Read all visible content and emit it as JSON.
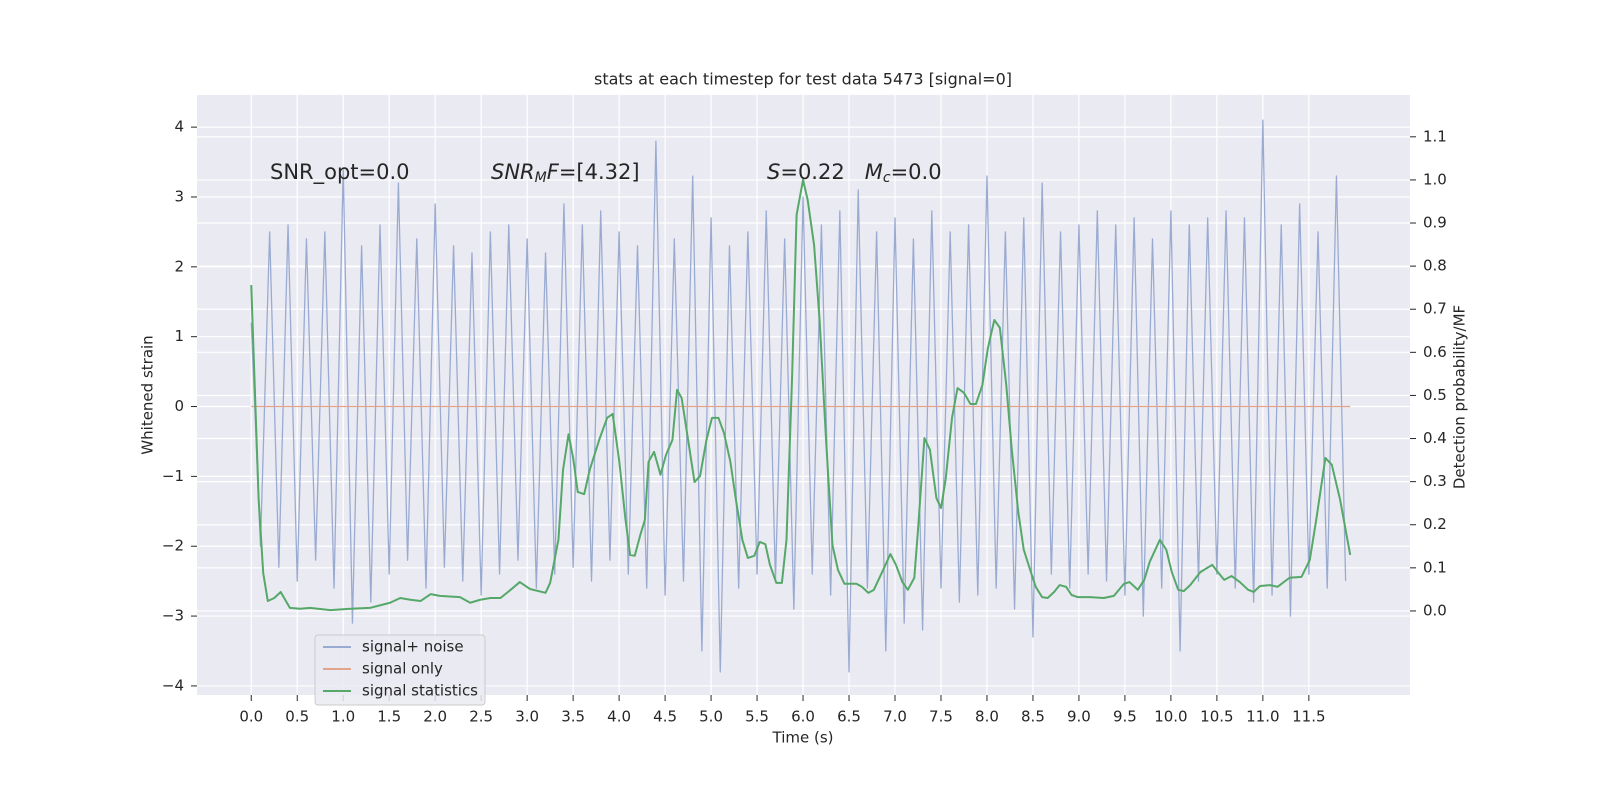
{
  "chart_data": {
    "type": "line",
    "title": "stats at each timestep for test data 5473 [signal=0]",
    "xlabel": "Time (s)",
    "ylabel": "Whitened strain",
    "y2label": "Detection probability/MF",
    "annotations": [
      [
        {
          "text": "SNR_opt=0.0",
          "style": "normal"
        }
      ],
      [
        {
          "text": "SNR",
          "style": "italic"
        },
        {
          "text": "M",
          "style": "sub"
        },
        {
          "text": "F",
          "style": "italic"
        },
        {
          "text": "=[4.32]",
          "style": "normal"
        }
      ],
      [
        {
          "text": "S",
          "style": "italic"
        },
        {
          "text": "=0.22   ",
          "style": "normal"
        },
        {
          "text": "M",
          "style": "italic"
        },
        {
          "text": "c",
          "style": "sub"
        },
        {
          "text": "=0.0",
          "style": "normal"
        }
      ]
    ],
    "xlim": [
      -0.59,
      12.6
    ],
    "ylim": [
      -4.13,
      4.46
    ],
    "y2lim": [
      -0.195,
      1.197
    ],
    "xticks": [
      {
        "value": 0,
        "label": "0.0"
      },
      {
        "value": 0.5,
        "label": "0.5"
      },
      {
        "value": 1,
        "label": "1.0"
      },
      {
        "value": 1.5,
        "label": "1.5"
      },
      {
        "value": 2,
        "label": "2.0"
      },
      {
        "value": 2.5,
        "label": "2.5"
      },
      {
        "value": 3,
        "label": "3.0"
      },
      {
        "value": 3.5,
        "label": "3.5"
      },
      {
        "value": 4,
        "label": "4.0"
      },
      {
        "value": 4.5,
        "label": "4.5"
      },
      {
        "value": 5,
        "label": "5.0"
      },
      {
        "value": 5.5,
        "label": "5.5"
      },
      {
        "value": 6,
        "label": "6.0"
      },
      {
        "value": 6.5,
        "label": "6.5"
      },
      {
        "value": 7,
        "label": "7.0"
      },
      {
        "value": 7.5,
        "label": "7.5"
      },
      {
        "value": 8,
        "label": "8.0"
      },
      {
        "value": 8.5,
        "label": "8.5"
      },
      {
        "value": 9,
        "label": "9.0"
      },
      {
        "value": 9.5,
        "label": "9.5"
      },
      {
        "value": 10,
        "label": "10.0"
      },
      {
        "value": 10.5,
        "label": "10.5"
      },
      {
        "value": 11,
        "label": "11.0"
      },
      {
        "value": 11.5,
        "label": "11.5"
      }
    ],
    "yticks": [
      {
        "value": -4,
        "label": "−4"
      },
      {
        "value": -3,
        "label": "−3"
      },
      {
        "value": -2,
        "label": "−2"
      },
      {
        "value": -1,
        "label": "−1"
      },
      0,
      1,
      2,
      3,
      4
    ],
    "y2ticks": [
      {
        "value": 0,
        "label": "0.0"
      },
      {
        "value": 0.1,
        "label": "0.1"
      },
      {
        "value": 0.2,
        "label": "0.2"
      },
      {
        "value": 0.3,
        "label": "0.3"
      },
      {
        "value": 0.4,
        "label": "0.4"
      },
      {
        "value": 0.5,
        "label": "0.5"
      },
      {
        "value": 0.6,
        "label": "0.6"
      },
      {
        "value": 0.7,
        "label": "0.7"
      },
      {
        "value": 0.8,
        "label": "0.8"
      },
      {
        "value": 0.9,
        "label": "0.9"
      },
      {
        "value": 1,
        "label": "1.0"
      },
      {
        "value": 1.1,
        "label": "1.1"
      }
    ],
    "grid": true,
    "legend": "lower left",
    "series": [
      {
        "name": "signal+ noise",
        "color": "#9aabd2",
        "axis": "y",
        "x": [
          0,
          0.1,
          0.2,
          0.3,
          0.4,
          0.5,
          0.6,
          0.7,
          0.8,
          0.9,
          1,
          1.1,
          1.2,
          1.3,
          1.4,
          1.5,
          1.6,
          1.7,
          1.8,
          1.9,
          2,
          2.1,
          2.2,
          2.3,
          2.4,
          2.5,
          2.6,
          2.7,
          2.8,
          2.9,
          3,
          3.1,
          3.2,
          3.3,
          3.4,
          3.5,
          3.6,
          3.7,
          3.8,
          3.9,
          4,
          4.1,
          4.2,
          4.3,
          4.4,
          4.5,
          4.6,
          4.7,
          4.8,
          4.9,
          5,
          5.1,
          5.2,
          5.3,
          5.4,
          5.5,
          5.6,
          5.7,
          5.8,
          5.9,
          6,
          6.1,
          6.2,
          6.3,
          6.4,
          6.5,
          6.6,
          6.7,
          6.8,
          6.9,
          7,
          7.1,
          7.2,
          7.3,
          7.4,
          7.5,
          7.6,
          7.7,
          7.8,
          7.9,
          8,
          8.1,
          8.2,
          8.3,
          8.4,
          8.5,
          8.6,
          8.7,
          8.8,
          8.9,
          9,
          9.1,
          9.2,
          9.3,
          9.4,
          9.5,
          9.6,
          9.7,
          9.8,
          9.9,
          10,
          10.1,
          10.2,
          10.3,
          10.4,
          10.5,
          10.6,
          10.7,
          10.8,
          10.9,
          11,
          11.1,
          11.2,
          11.3,
          11.4,
          11.5,
          11.6,
          11.7,
          11.8,
          11.9
        ],
        "values": [
          1.2,
          -2.0,
          2.5,
          -2.3,
          2.6,
          -2.5,
          2.4,
          -2.2,
          2.5,
          -2.6,
          3.4,
          -3.1,
          2.3,
          -2.8,
          2.6,
          -2.4,
          3.2,
          -2.2,
          2.4,
          -2.6,
          2.9,
          -2.3,
          2.3,
          -2.5,
          2.2,
          -2.7,
          2.5,
          -2.4,
          2.6,
          -2.2,
          2.4,
          -2.6,
          2.2,
          -2.4,
          2.9,
          -2.3,
          2.6,
          -2.5,
          2.8,
          -2.2,
          2.5,
          -2.4,
          2.3,
          -2.6,
          3.8,
          -2.7,
          2.4,
          -2.5,
          3.3,
          -3.5,
          2.7,
          -3.8,
          2.3,
          -2.6,
          2.5,
          -2.4,
          2.8,
          -2.5,
          2.4,
          -2.9,
          3.0,
          -2.4,
          2.6,
          -2.7,
          2.8,
          -3.8,
          3.1,
          -2.6,
          2.5,
          -3.5,
          2.7,
          -3.1,
          2.4,
          -3.2,
          2.8,
          -2.6,
          2.5,
          -2.8,
          2.6,
          -2.7,
          3.3,
          -2.6,
          2.5,
          -2.9,
          2.7,
          -3.3,
          3.2,
          -2.4,
          2.5,
          -2.6,
          2.6,
          -2.4,
          2.8,
          -2.5,
          2.6,
          -2.7,
          2.7,
          -3.0,
          2.4,
          -2.6,
          2.8,
          -3.5,
          2.6,
          -2.5,
          2.7,
          -2.4,
          2.8,
          -2.6,
          2.7,
          -2.8,
          4.1,
          -2.7,
          2.6,
          -3.0,
          2.9,
          -2.4,
          2.5,
          -2.6,
          3.3,
          -2.5
        ]
      },
      {
        "name": "signal only",
        "color": "#e2a48a",
        "axis": "y",
        "x": [
          0,
          11.95
        ],
        "values": [
          0,
          0
        ]
      },
      {
        "name": "signal statistics",
        "color": "#55a868",
        "axis": "y2",
        "x": [
          0,
          0.08,
          0.13,
          0.18,
          0.25,
          0.32,
          0.42,
          0.53,
          0.64,
          0.86,
          1.08,
          1.29,
          1.51,
          1.62,
          1.73,
          1.84,
          1.95,
          2.05,
          2.27,
          2.38,
          2.49,
          2.6,
          2.71,
          2.82,
          2.92,
          3.03,
          3.2,
          3.25,
          3.34,
          3.39,
          3.45,
          3.5,
          3.55,
          3.62,
          3.68,
          3.75,
          3.79,
          3.87,
          3.93,
          4,
          4.07,
          4.12,
          4.17,
          4.23,
          4.28,
          4.32,
          4.38,
          4.45,
          4.51,
          4.58,
          4.63,
          4.68,
          4.75,
          4.82,
          4.88,
          4.95,
          5.01,
          5.08,
          5.14,
          5.21,
          5.27,
          5.34,
          5.4,
          5.47,
          5.53,
          5.59,
          5.64,
          5.71,
          5.77,
          5.82,
          5.88,
          5.93,
          6,
          6.05,
          6.12,
          6.18,
          6.25,
          6.32,
          6.38,
          6.45,
          6.51,
          6.58,
          6.64,
          6.71,
          6.77,
          6.84,
          6.95,
          7.01,
          7.08,
          7.14,
          7.21,
          7.25,
          7.32,
          7.38,
          7.45,
          7.5,
          7.55,
          7.62,
          7.68,
          7.75,
          7.82,
          7.88,
          7.95,
          8.01,
          8.08,
          8.14,
          8.21,
          8.27,
          8.34,
          8.4,
          8.47,
          8.53,
          8.6,
          8.66,
          8.73,
          8.79,
          8.86,
          8.92,
          8.99,
          9.12,
          9.27,
          9.38,
          9.49,
          9.55,
          9.64,
          9.71,
          9.77,
          9.88,
          9.95,
          10.01,
          10.08,
          10.14,
          10.21,
          10.32,
          10.45,
          10.51,
          10.58,
          10.66,
          10.75,
          10.84,
          10.9,
          10.97,
          11.08,
          11.16,
          11.29,
          11.42,
          11.51,
          11.58,
          11.68,
          11.75,
          11.84,
          11.9,
          11.95
        ],
        "values": [
          0.756,
          0.26,
          0.088,
          0.023,
          0.03,
          0.044,
          0.007,
          0.005,
          0.007,
          0.002,
          0.005,
          0.007,
          0.019,
          0.03,
          0.026,
          0.023,
          0.039,
          0.035,
          0.032,
          0.019,
          0.026,
          0.03,
          0.03,
          0.049,
          0.067,
          0.051,
          0.042,
          0.065,
          0.165,
          0.327,
          0.41,
          0.355,
          0.276,
          0.271,
          0.327,
          0.374,
          0.401,
          0.448,
          0.457,
          0.35,
          0.211,
          0.13,
          0.128,
          0.176,
          0.211,
          0.346,
          0.369,
          0.316,
          0.362,
          0.397,
          0.513,
          0.494,
          0.397,
          0.299,
          0.313,
          0.397,
          0.448,
          0.448,
          0.413,
          0.346,
          0.258,
          0.165,
          0.123,
          0.128,
          0.16,
          0.155,
          0.107,
          0.065,
          0.065,
          0.165,
          0.536,
          0.919,
          1.0,
          0.954,
          0.849,
          0.675,
          0.397,
          0.153,
          0.095,
          0.063,
          0.063,
          0.063,
          0.056,
          0.042,
          0.049,
          0.081,
          0.132,
          0.107,
          0.067,
          0.049,
          0.077,
          0.188,
          0.401,
          0.374,
          0.262,
          0.239,
          0.304,
          0.448,
          0.517,
          0.506,
          0.48,
          0.48,
          0.524,
          0.61,
          0.675,
          0.657,
          0.524,
          0.374,
          0.23,
          0.142,
          0.095,
          0.056,
          0.032,
          0.03,
          0.044,
          0.06,
          0.056,
          0.037,
          0.032,
          0.032,
          0.03,
          0.035,
          0.063,
          0.067,
          0.049,
          0.072,
          0.114,
          0.165,
          0.142,
          0.09,
          0.049,
          0.046,
          0.06,
          0.09,
          0.107,
          0.09,
          0.072,
          0.081,
          0.067,
          0.049,
          0.044,
          0.058,
          0.06,
          0.056,
          0.077,
          0.079,
          0.118,
          0.211,
          0.355,
          0.339,
          0.258,
          0.188,
          0.13
        ]
      }
    ]
  }
}
